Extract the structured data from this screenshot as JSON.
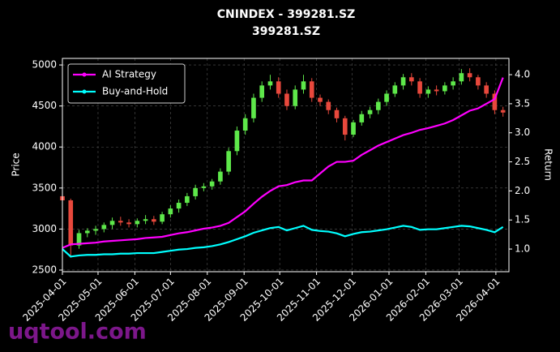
{
  "chart_data": {
    "type": "candlestick",
    "title": "CNINDEX - 399281.SZ",
    "subtitle": "399281.SZ",
    "ylabel": "Price",
    "y2label": "Return",
    "watermark": "uqtool.com",
    "x": [
      "2025-04-01",
      "2025-04-08",
      "2025-04-15",
      "2025-04-22",
      "2025-04-29",
      "2025-05-06",
      "2025-05-13",
      "2025-05-20",
      "2025-05-27",
      "2025-06-03",
      "2025-06-10",
      "2025-06-17",
      "2025-06-24",
      "2025-07-01",
      "2025-07-08",
      "2025-07-15",
      "2025-07-22",
      "2025-07-29",
      "2025-08-05",
      "2025-08-12",
      "2025-08-19",
      "2025-08-26",
      "2025-09-02",
      "2025-09-09",
      "2025-09-16",
      "2025-09-23",
      "2025-09-30",
      "2025-10-07",
      "2025-10-14",
      "2025-10-21",
      "2025-10-28",
      "2025-11-04",
      "2025-11-11",
      "2025-11-18",
      "2025-11-25",
      "2025-12-02",
      "2025-12-09",
      "2025-12-16",
      "2025-12-23",
      "2025-12-30",
      "2026-01-06",
      "2026-01-13",
      "2026-01-20",
      "2026-01-27",
      "2026-02-03",
      "2026-02-10",
      "2026-02-17",
      "2026-02-24",
      "2026-03-03",
      "2026-03-10",
      "2026-03-17",
      "2026-03-24",
      "2026-03-31",
      "2026-04-07"
    ],
    "open": [
      3400,
      3350,
      2800,
      2950,
      2980,
      3000,
      3050,
      3100,
      3080,
      3060,
      3100,
      3120,
      3090,
      3180,
      3250,
      3320,
      3400,
      3500,
      3520,
      3580,
      3700,
      3950,
      4200,
      4350,
      4600,
      4750,
      4800,
      4650,
      4500,
      4700,
      4800,
      4600,
      4550,
      4450,
      4350,
      4150,
      4300,
      4400,
      4450,
      4550,
      4650,
      4750,
      4850,
      4800,
      4650,
      4700,
      4680,
      4750,
      4800,
      4900,
      4850,
      4750,
      4650,
      4450
    ],
    "high": [
      3420,
      3370,
      2990,
      3010,
      3040,
      3080,
      3140,
      3150,
      3120,
      3130,
      3170,
      3160,
      3210,
      3290,
      3360,
      3440,
      3540,
      3560,
      3610,
      3740,
      3990,
      4250,
      4400,
      4650,
      4800,
      4880,
      4850,
      4700,
      4750,
      4880,
      4840,
      4640,
      4580,
      4480,
      4380,
      4330,
      4440,
      4490,
      4590,
      4690,
      4790,
      4890,
      4900,
      4840,
      4740,
      4750,
      4790,
      4850,
      4950,
      4960,
      4880,
      4790,
      4690,
      4490
    ],
    "low": [
      3330,
      2650,
      2760,
      2900,
      2930,
      2960,
      3000,
      3040,
      3020,
      3020,
      3060,
      3050,
      3060,
      3140,
      3200,
      3280,
      3360,
      3460,
      3480,
      3540,
      3660,
      3900,
      4150,
      4300,
      4550,
      4700,
      4600,
      4450,
      4460,
      4650,
      4550,
      4500,
      4400,
      4300,
      4080,
      4120,
      4260,
      4350,
      4400,
      4500,
      4610,
      4700,
      4750,
      4600,
      4600,
      4630,
      4640,
      4700,
      4760,
      4800,
      4700,
      4600,
      4400,
      4370
    ],
    "close": [
      3350,
      2800,
      2950,
      2980,
      3000,
      3050,
      3100,
      3080,
      3060,
      3100,
      3120,
      3090,
      3180,
      3250,
      3320,
      3400,
      3500,
      3520,
      3580,
      3700,
      3950,
      4200,
      4350,
      4600,
      4750,
      4800,
      4650,
      4500,
      4700,
      4800,
      4600,
      4550,
      4450,
      4350,
      4150,
      4300,
      4400,
      4450,
      4550,
      4650,
      4750,
      4850,
      4800,
      4650,
      4700,
      4680,
      4750,
      4800,
      4900,
      4850,
      4750,
      4650,
      4450,
      4420
    ],
    "up_color": "#5ee84a",
    "down_color": "#e8483c",
    "series": [
      {
        "name": "AI Strategy",
        "type": "line",
        "axis": "y2",
        "color": "#ff00ff",
        "values": [
          1.02,
          1.08,
          1.09,
          1.1,
          1.11,
          1.13,
          1.14,
          1.15,
          1.16,
          1.17,
          1.19,
          1.2,
          1.21,
          1.24,
          1.27,
          1.29,
          1.32,
          1.35,
          1.37,
          1.4,
          1.45,
          1.55,
          1.65,
          1.78,
          1.9,
          2.0,
          2.08,
          2.1,
          2.15,
          2.18,
          2.18,
          2.3,
          2.42,
          2.5,
          2.5,
          2.52,
          2.62,
          2.7,
          2.78,
          2.84,
          2.9,
          2.96,
          3.0,
          3.05,
          3.08,
          3.12,
          3.16,
          3.22,
          3.3,
          3.38,
          3.42,
          3.5,
          3.58,
          3.95
        ]
      },
      {
        "name": "Buy-and-Hold",
        "type": "line",
        "axis": "y2",
        "color": "#00ffff",
        "values": [
          1.0,
          0.87,
          0.89,
          0.9,
          0.9,
          0.91,
          0.91,
          0.92,
          0.92,
          0.93,
          0.93,
          0.93,
          0.95,
          0.97,
          0.99,
          1.0,
          1.02,
          1.03,
          1.05,
          1.08,
          1.12,
          1.17,
          1.22,
          1.28,
          1.32,
          1.36,
          1.38,
          1.32,
          1.36,
          1.4,
          1.33,
          1.31,
          1.3,
          1.27,
          1.22,
          1.26,
          1.29,
          1.3,
          1.32,
          1.34,
          1.37,
          1.4,
          1.38,
          1.33,
          1.34,
          1.34,
          1.36,
          1.38,
          1.4,
          1.39,
          1.36,
          1.33,
          1.29,
          1.38
        ]
      }
    ],
    "xlim": [
      "2025-04-01",
      "2026-04-12"
    ],
    "xticks": [
      "2025-04-01",
      "2025-05-01",
      "2025-06-01",
      "2025-07-01",
      "2025-08-01",
      "2025-09-01",
      "2025-10-01",
      "2025-11-01",
      "2025-12-01",
      "2026-01-01",
      "2026-02-01",
      "2026-03-01",
      "2026-04-01"
    ],
    "ylim": [
      2480,
      5080
    ],
    "yticks": [
      2500,
      3000,
      3500,
      4000,
      4500,
      5000
    ],
    "y2lim": [
      0.61,
      4.28
    ],
    "y2ticks": [
      {
        "value": 1,
        "label": "1.0"
      },
      {
        "value": 1.5,
        "label": "1.5"
      },
      {
        "value": 2,
        "label": "2.0"
      },
      {
        "value": 2.5,
        "label": "2.5"
      },
      {
        "value": 3,
        "label": "3.0"
      },
      {
        "value": 3.5,
        "label": "3.5"
      },
      {
        "value": 4,
        "label": "4.0"
      }
    ],
    "grid": true,
    "legend": "upper left"
  }
}
